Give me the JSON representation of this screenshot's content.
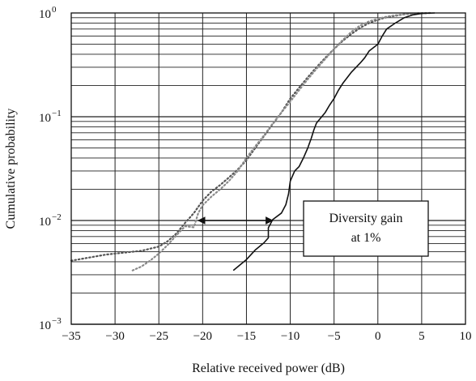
{
  "chart_data": {
    "type": "line",
    "title": "",
    "xlabel": "Relative received power (dB)",
    "ylabel": "Cumulative probability",
    "xlim": [
      -35,
      10
    ],
    "ylim": [
      0.001,
      1
    ],
    "yscale": "log",
    "grid": true,
    "xticks": [
      -35,
      -30,
      -25,
      -20,
      -15,
      -10,
      -5,
      0,
      5,
      10
    ],
    "xtick_labels": [
      "−35",
      "−30",
      "−25",
      "−20",
      "−15",
      "−10",
      "−5",
      "0",
      "5",
      "10"
    ],
    "yticks": [
      {
        "value": 0.001,
        "base": "10",
        "exp": "−3"
      },
      {
        "value": 0.01,
        "base": "10",
        "exp": "−2"
      },
      {
        "value": 0.1,
        "base": "10",
        "exp": "−1"
      },
      {
        "value": 1,
        "base": "10",
        "exp": "0"
      }
    ],
    "series": [
      {
        "style": "dotted",
        "color": "#555555",
        "points": [
          [
            -35,
            0.0041
          ],
          [
            -31,
            0.0047
          ],
          [
            -27,
            0.0051
          ],
          [
            -25,
            0.0056
          ],
          [
            -24,
            0.0063
          ],
          [
            -23,
            0.0075
          ],
          [
            -22,
            0.0095
          ],
          [
            -21,
            0.0118
          ],
          [
            -20,
            0.0155
          ],
          [
            -19,
            0.019
          ],
          [
            -18,
            0.022
          ],
          [
            -17,
            0.026
          ],
          [
            -16,
            0.031
          ],
          [
            -15,
            0.038
          ],
          [
            -14,
            0.05
          ],
          [
            -13,
            0.065
          ],
          [
            -12,
            0.085
          ],
          [
            -11,
            0.11
          ],
          [
            -10,
            0.15
          ],
          [
            -9,
            0.19
          ],
          [
            -8,
            0.24
          ],
          [
            -7,
            0.3
          ],
          [
            -6,
            0.37
          ],
          [
            -5,
            0.45
          ],
          [
            -4,
            0.54
          ],
          [
            -3,
            0.63
          ],
          [
            -2,
            0.72
          ],
          [
            -1,
            0.8
          ],
          [
            0,
            0.86
          ],
          [
            1,
            0.91
          ],
          [
            2,
            0.94
          ],
          [
            3,
            0.97
          ],
          [
            4,
            0.985
          ],
          [
            5,
            0.995
          ],
          [
            6,
            1.0
          ]
        ]
      },
      {
        "style": "dotted",
        "color": "#8a8a8a",
        "points": [
          [
            -28,
            0.0033
          ],
          [
            -27,
            0.0036
          ],
          [
            -26,
            0.0041
          ],
          [
            -25,
            0.0048
          ],
          [
            -24,
            0.0058
          ],
          [
            -23,
            0.0072
          ],
          [
            -22,
            0.0088
          ],
          [
            -21,
            0.0086
          ],
          [
            -20.5,
            0.0118
          ],
          [
            -20,
            0.014
          ],
          [
            -19,
            0.017
          ],
          [
            -18,
            0.02
          ],
          [
            -17,
            0.024
          ],
          [
            -16,
            0.03
          ],
          [
            -15,
            0.04
          ],
          [
            -14,
            0.052
          ],
          [
            -13,
            0.066
          ],
          [
            -12,
            0.086
          ],
          [
            -11,
            0.11
          ],
          [
            -10,
            0.14
          ],
          [
            -9,
            0.18
          ],
          [
            -8,
            0.23
          ],
          [
            -7,
            0.29
          ],
          [
            -6,
            0.36
          ],
          [
            -5,
            0.45
          ],
          [
            -4,
            0.55
          ],
          [
            -3,
            0.66
          ],
          [
            -2,
            0.76
          ],
          [
            -1,
            0.83
          ],
          [
            0,
            0.88
          ],
          [
            1,
            0.92
          ],
          [
            2,
            0.95
          ],
          [
            3,
            0.97
          ],
          [
            4,
            0.985
          ],
          [
            5,
            0.995
          ],
          [
            6,
            1.0
          ]
        ]
      },
      {
        "style": "solid",
        "color": "#111111",
        "points": [
          [
            -16.5,
            0.0033
          ],
          [
            -15,
            0.0042
          ],
          [
            -14,
            0.0052
          ],
          [
            -13,
            0.0061
          ],
          [
            -12.5,
            0.0068
          ],
          [
            -12.5,
            0.0085
          ],
          [
            -12,
            0.0102
          ],
          [
            -11,
            0.0118
          ],
          [
            -10.5,
            0.0142
          ],
          [
            -10.2,
            0.018
          ],
          [
            -10,
            0.024
          ],
          [
            -9.5,
            0.03
          ],
          [
            -9,
            0.033
          ],
          [
            -8.5,
            0.04
          ],
          [
            -8,
            0.05
          ],
          [
            -7.6,
            0.062
          ],
          [
            -7.3,
            0.075
          ],
          [
            -7,
            0.087
          ],
          [
            -6,
            0.11
          ],
          [
            -5.5,
            0.13
          ],
          [
            -5,
            0.15
          ],
          [
            -4.5,
            0.18
          ],
          [
            -4,
            0.21
          ],
          [
            -3,
            0.27
          ],
          [
            -2,
            0.33
          ],
          [
            -1.5,
            0.37
          ],
          [
            -1,
            0.43
          ],
          [
            0,
            0.5
          ],
          [
            0.5,
            0.6
          ],
          [
            1,
            0.7
          ],
          [
            2,
            0.8
          ],
          [
            3,
            0.9
          ],
          [
            4,
            0.96
          ],
          [
            5,
            0.99
          ],
          [
            6.5,
            1.0
          ]
        ]
      }
    ],
    "annotations": {
      "arrow": {
        "x_start": -20.5,
        "x_end": -12,
        "y": 0.01
      },
      "box_lines": [
        "Diversity gain",
        "at 1%"
      ]
    }
  }
}
